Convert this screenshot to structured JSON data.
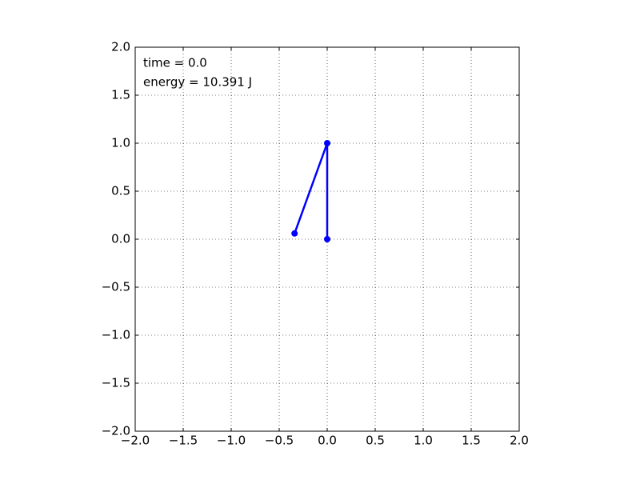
{
  "chart_data": {
    "type": "line",
    "annotations": [
      "time = 0.0",
      "energy = 10.391 J"
    ],
    "series": [
      {
        "color": "#0000ff",
        "x": [
          0,
          0,
          -0.34
        ],
        "values": [
          0,
          1,
          0.06
        ]
      }
    ],
    "xlim": [
      -2,
      2
    ],
    "ylim": [
      -2,
      2
    ],
    "xticks": [
      {
        "value": -2,
        "label": "−2.0"
      },
      {
        "value": -1.5,
        "label": "−1.5"
      },
      {
        "value": -1,
        "label": "−1.0"
      },
      {
        "value": -0.5,
        "label": "−0.5"
      },
      {
        "value": 0,
        "label": "0.0"
      },
      0.5,
      {
        "value": 1,
        "label": "1.0"
      },
      1.5,
      {
        "value": 2,
        "label": "2.0"
      }
    ],
    "yticks": [
      {
        "value": -2,
        "label": "−2.0"
      },
      {
        "value": -1.5,
        "label": "−1.5"
      },
      {
        "value": -1,
        "label": "−1.0"
      },
      {
        "value": -0.5,
        "label": "−0.5"
      },
      {
        "value": 0,
        "label": "0.0"
      },
      0.5,
      {
        "value": 1,
        "label": "1.0"
      },
      1.5,
      {
        "value": 2,
        "label": "2.0"
      }
    ],
    "grid": true
  }
}
